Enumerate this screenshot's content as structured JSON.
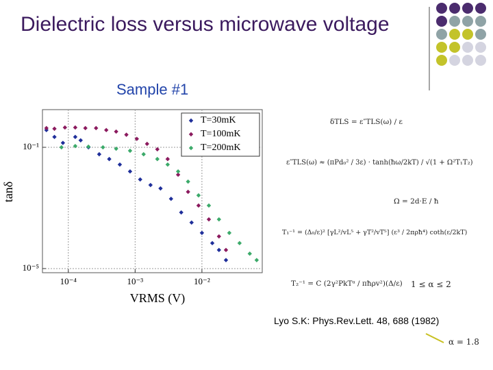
{
  "slide": {
    "title": "Dielectric loss versus microwave voltage",
    "subtitle": "Sample #1",
    "formulas": [
      "δTLS = ε″TLS(ω) / ε",
      "ε″TLS(ω) ≈ (πPd₀² / 3ε) · tanh(ħω/2kT) / √(1 + Ω²T₁T₂)",
      "Ω = 2d·E / ħ",
      "T₁⁻¹ = (Δ₀/ε)² [γL²/vL⁵ + γT²/vT⁵] (ε³ / 2πρħ⁴) coth(ε/2kT)",
      "T₂⁻¹ = C (2γ²PkTᵅ / πħρv²)(Δ/ε)",
      "1 ≤ α ≤ 2",
      "α = 1.8"
    ],
    "citation": "Lyo S.K: Phys.Rev.Lett. 48, 688 (1982)"
  },
  "chart_data": {
    "type": "scatter",
    "xlabel": "VRMS (V)",
    "ylabel": "tanδ",
    "xscale": "log",
    "yscale": "log",
    "grid": true,
    "legend": "upper right",
    "xlim": [
      4.1e-05,
      0.08
    ],
    "ylim": [
      7.3e-06,
      1.75
    ],
    "xticks": [
      {
        "value": 0.0001,
        "label": "10⁻⁴"
      },
      {
        "value": 0.001,
        "label": "10⁻³"
      },
      {
        "value": 0.01,
        "label": "10⁻²"
      }
    ],
    "yticks": [
      {
        "value": 0.1,
        "label": "10⁻¹"
      },
      {
        "value": 1e-05,
        "label": "10⁻⁵"
      }
    ],
    "series": [
      {
        "name": "T=30mK",
        "color": "#1f2f9a",
        "x": [
          4.7e-05,
          6.2e-05,
          8.3e-05,
          0.000127,
          0.000153,
          0.0002,
          0.00029,
          0.00041,
          0.00059,
          0.00084,
          0.00119,
          0.0017,
          0.0024,
          0.00345,
          0.0049,
          0.007,
          0.01,
          0.0143,
          0.018,
          0.0229
        ],
        "values": [
          0.37,
          0.22,
          0.14,
          0.22,
          0.17,
          0.1,
          0.059,
          0.041,
          0.027,
          0.016,
          0.0087,
          0.0057,
          0.0044,
          0.002,
          0.00071,
          0.00033,
          0.00015,
          6.9e-05,
          4.1e-05,
          1.9e-05
        ]
      },
      {
        "name": "T=100mK",
        "color": "#8b1a5e",
        "x": [
          4.7e-05,
          6.2e-05,
          8.9e-05,
          0.000127,
          0.00018,
          0.00026,
          0.00037,
          0.00052,
          0.00074,
          0.00106,
          0.00151,
          0.00215,
          0.00307,
          0.0044,
          0.0062,
          0.0089,
          0.0127,
          0.018,
          0.0229
        ],
        "values": [
          0.43,
          0.41,
          0.45,
          0.45,
          0.43,
          0.43,
          0.37,
          0.33,
          0.26,
          0.19,
          0.13,
          0.086,
          0.041,
          0.0125,
          0.0034,
          0.0012,
          0.00042,
          0.000115,
          4.1e-05
        ]
      },
      {
        "name": "T=200mK",
        "color": "#3caa6a",
        "x": [
          7.9e-05,
          0.000127,
          0.0002,
          0.00033,
          0.00052,
          0.00084,
          0.00134,
          0.00215,
          0.00307,
          0.0044,
          0.0062,
          0.0089,
          0.0127,
          0.018,
          0.0257,
          0.0366,
          0.052,
          0.066
        ],
        "values": [
          0.1,
          0.11,
          0.105,
          0.1,
          0.09,
          0.077,
          0.059,
          0.041,
          0.027,
          0.016,
          0.0074,
          0.0026,
          0.0012,
          0.00042,
          0.00015,
          6.9e-05,
          3.1e-05,
          1.9e-05
        ]
      }
    ]
  }
}
